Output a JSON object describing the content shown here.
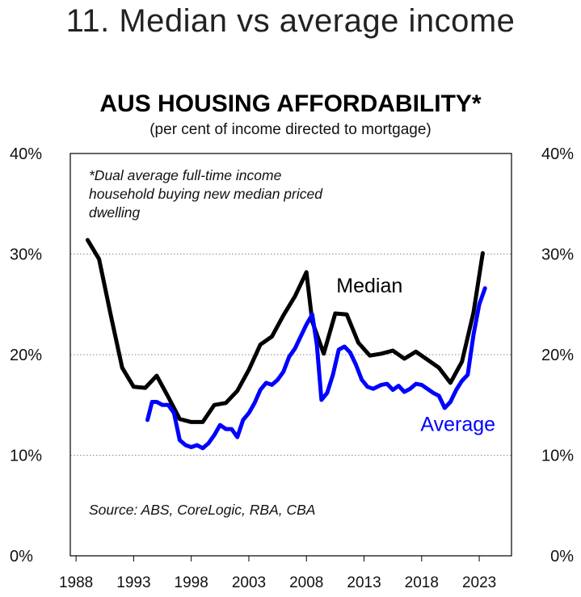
{
  "slide": {
    "title": "11. Median vs average income"
  },
  "chart_data": {
    "type": "line",
    "title": "AUS HOUSING AFFORDABILITY*",
    "subtitle": "(per cent of income directed to mortgage)",
    "note_lines": [
      "*Dual average full-time income",
      "household buying new median priced",
      "dwelling"
    ],
    "source": "Source: ABS, CoreLogic, RBA, CBA",
    "xlabel": "",
    "ylabel": "",
    "xlim": [
      1987.5,
      2025.8
    ],
    "ylim": [
      0,
      40
    ],
    "x_ticks": [
      1988,
      1993,
      1998,
      2003,
      2008,
      2013,
      2018,
      2023
    ],
    "y_ticks": [
      0,
      10,
      20,
      30,
      40
    ],
    "y_tick_labels": [
      "0%",
      "10%",
      "20%",
      "30%",
      "40%"
    ],
    "grid": "horizontal-dotted",
    "series": [
      {
        "name": "Median",
        "color": "#000000",
        "x": [
          1989.0,
          1990.0,
          1991.0,
          1992.0,
          1993.0,
          1994.0,
          1995.0,
          1996.0,
          1997.0,
          1998.0,
          1999.0,
          2000.0,
          2001.0,
          2002.0,
          2003.0,
          2004.0,
          2005.0,
          2006.0,
          2007.0,
          2008.0,
          2008.5,
          2009.5,
          2010.5,
          2011.5,
          2012.5,
          2013.5,
          2014.5,
          2015.5,
          2016.5,
          2017.5,
          2018.5,
          2019.5,
          2020.5,
          2021.5,
          2022.5,
          2023.3
        ],
        "values": [
          31.4,
          29.5,
          24.0,
          18.7,
          16.8,
          16.7,
          17.9,
          15.8,
          13.6,
          13.3,
          13.3,
          15.0,
          15.2,
          16.4,
          18.5,
          21.0,
          21.8,
          23.9,
          25.8,
          28.2,
          23.3,
          20.1,
          24.1,
          24.0,
          21.2,
          19.9,
          20.1,
          20.4,
          19.6,
          20.3,
          19.5,
          18.7,
          17.2,
          19.3,
          24.2,
          30.1
        ]
      },
      {
        "name": "Average",
        "color": "#0000ff",
        "x": [
          1994.2,
          1994.6,
          1995.0,
          1995.5,
          1996.0,
          1996.5,
          1997.0,
          1997.5,
          1998.0,
          1998.5,
          1999.0,
          1999.5,
          2000.0,
          2000.5,
          2001.0,
          2001.5,
          2002.0,
          2002.5,
          2003.0,
          2003.5,
          2004.0,
          2004.5,
          2005.0,
          2005.5,
          2006.0,
          2006.5,
          2007.0,
          2007.5,
          2008.0,
          2008.5,
          2008.9,
          2009.3,
          2009.8,
          2010.3,
          2010.8,
          2011.3,
          2011.8,
          2012.3,
          2012.8,
          2013.3,
          2013.8,
          2014.5,
          2015.0,
          2015.5,
          2016.0,
          2016.5,
          2017.0,
          2017.5,
          2018.0,
          2018.5,
          2019.0,
          2019.5,
          2020.0,
          2020.5,
          2021.0,
          2021.5,
          2022.0,
          2022.5,
          2023.0,
          2023.5
        ],
        "values": [
          13.5,
          15.3,
          15.3,
          15.0,
          15.0,
          14.2,
          11.5,
          11.0,
          10.8,
          11.0,
          10.7,
          11.2,
          12.0,
          13.0,
          12.6,
          12.6,
          11.8,
          13.5,
          14.2,
          15.2,
          16.5,
          17.2,
          17.0,
          17.5,
          18.3,
          19.8,
          20.6,
          21.8,
          23.0,
          24.0,
          21.0,
          15.5,
          16.2,
          18.0,
          20.5,
          20.8,
          20.2,
          19.0,
          17.5,
          16.8,
          16.6,
          17.0,
          17.1,
          16.5,
          16.9,
          16.3,
          16.6,
          17.1,
          17.0,
          16.6,
          16.2,
          15.9,
          14.7,
          15.3,
          16.5,
          17.4,
          18.0,
          22.0,
          25.0,
          26.6
        ]
      }
    ],
    "annotations": [
      {
        "text": "Median",
        "series": "Median",
        "x": 2010.6,
        "y": 26.2
      },
      {
        "text": "Average",
        "series": "Average",
        "x": 2017.9,
        "y": 12.4
      }
    ]
  }
}
